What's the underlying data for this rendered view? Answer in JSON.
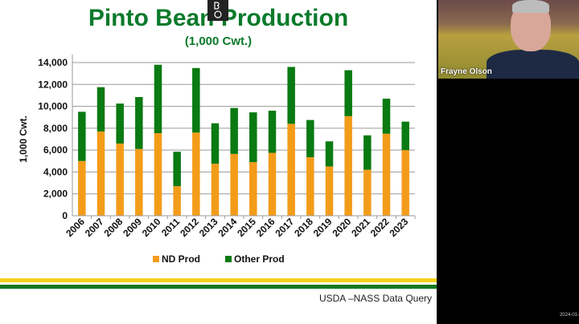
{
  "slide": {
    "logo_text": "B&O",
    "source": "USDA –NASS Data Query"
  },
  "video": {
    "participant_name": "Frayne Olson"
  },
  "timestamp": "2024-01-",
  "colors": {
    "nd": "#f39c1a",
    "other": "#0a7a12",
    "title": "#0b7a2b",
    "stripe_yellow": "#f5d21c",
    "stripe_green": "#0b7a1f"
  },
  "chart_data": {
    "type": "bar",
    "stacked": true,
    "title": "Pinto Bean Production",
    "subtitle": "(1,000 Cwt.)",
    "ylabel": "1,000 Cwt.",
    "xlabel": "",
    "ylim": [
      0,
      14000
    ],
    "yticks": [
      "0",
      "2,000",
      "4,000",
      "6,000",
      "8,000",
      "10,000",
      "12,000",
      "14,000"
    ],
    "grid": true,
    "legend": "bottom",
    "categories": [
      "2006",
      "2007",
      "2008",
      "2009",
      "2010",
      "2011",
      "2012",
      "2013",
      "2014",
      "2015",
      "2016",
      "2017",
      "2018",
      "2019",
      "2020",
      "2021",
      "2022",
      "2023"
    ],
    "series": [
      {
        "name": "ND Prod",
        "color": "#f39c1a",
        "values": [
          5000,
          7700,
          6600,
          6100,
          7550,
          2700,
          7600,
          4750,
          5650,
          4900,
          5750,
          8400,
          5350,
          4500,
          9100,
          4200,
          7500,
          6000
        ]
      },
      {
        "name": "Other Prod",
        "color": "#0a7a12",
        "values": [
          4500,
          4050,
          3650,
          4750,
          6250,
          3150,
          5900,
          3700,
          4200,
          4550,
          3850,
          5200,
          3400,
          2300,
          4200,
          3150,
          3200,
          2600
        ]
      }
    ]
  }
}
